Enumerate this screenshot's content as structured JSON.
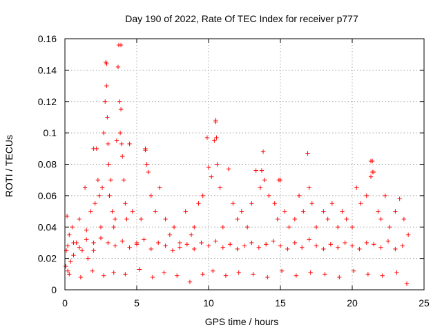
{
  "chart_data": {
    "type": "scatter",
    "title": "Day 190 of 2022, Rate Of TEC Index for receiver p777",
    "xlabel": "GPS time / hours",
    "ylabel": "ROTI / TECUs",
    "xlim": [
      0,
      25
    ],
    "ylim": [
      0,
      0.16
    ],
    "xticks": [
      0,
      5,
      10,
      15,
      20,
      25
    ],
    "xtick_labels": [
      "0",
      "5",
      "10",
      "15",
      "20",
      "25"
    ],
    "yticks": [
      0,
      0.02,
      0.04,
      0.06,
      0.08,
      0.1,
      0.12,
      0.14,
      0.16
    ],
    "ytick_labels": [
      "0",
      "0.02",
      "0.04",
      "0.06",
      "0.08",
      "0.1",
      "0.12",
      "0.14",
      "0.16"
    ],
    "grid": true,
    "marker": "+",
    "color": "#ff0000",
    "series": [
      {
        "name": "ROTI",
        "x": [
          0.05,
          0.1,
          0.15,
          0.2,
          0.3,
          0.4,
          0.5,
          0.6,
          0.8,
          1.0,
          1.2,
          1.4,
          1.5,
          1.6,
          1.8,
          2.0,
          2.1,
          2.2,
          2.3,
          2.4,
          2.5,
          2.6,
          2.7,
          2.8,
          2.85,
          2.9,
          2.95,
          3.0,
          3.05,
          3.1,
          3.2,
          3.3,
          3.4,
          3.5,
          3.6,
          3.7,
          3.75,
          3.8,
          3.85,
          3.9,
          3.95,
          4.0,
          4.1,
          4.2,
          4.3,
          4.5,
          4.7,
          5.0,
          5.3,
          5.6,
          5.7,
          5.8,
          6.0,
          6.3,
          6.6,
          7.0,
          7.3,
          7.6,
          8.0,
          8.4,
          8.8,
          9.0,
          9.3,
          9.6,
          10.0,
          10.2,
          10.4,
          10.5,
          10.55,
          10.6,
          10.8,
          11.0,
          11.4,
          11.7,
          12.0,
          12.3,
          12.7,
          13.0,
          13.3,
          13.6,
          13.8,
          13.9,
          14.2,
          14.6,
          14.8,
          15.0,
          15.3,
          15.6,
          16.0,
          16.3,
          16.6,
          16.9,
          17.0,
          17.2,
          17.5,
          18.0,
          18.3,
          18.6,
          19.0,
          19.3,
          19.6,
          20.0,
          20.3,
          20.6,
          21.0,
          21.3,
          21.4,
          21.5,
          21.8,
          22.0,
          22.3,
          22.6,
          23.0,
          23.3,
          23.6,
          23.9,
          0.2,
          0.6,
          1.0,
          1.5,
          2.0,
          2.5,
          3.0,
          3.5,
          4.0,
          4.5,
          5.0,
          5.5,
          6.0,
          6.5,
          7.0,
          7.5,
          8.0,
          8.5,
          9.0,
          9.5,
          10.0,
          10.5,
          11.0,
          11.5,
          12.0,
          12.5,
          13.0,
          13.5,
          14.0,
          14.5,
          15.0,
          15.5,
          16.0,
          16.5,
          17.0,
          17.5,
          18.0,
          18.5,
          19.0,
          19.5,
          20.0,
          20.5,
          21.0,
          21.5,
          22.0,
          22.5,
          23.0,
          23.5,
          0.3,
          1.1,
          1.9,
          2.7,
          3.4,
          4.2,
          5.2,
          6.1,
          6.9,
          7.8,
          8.7,
          9.6,
          10.3,
          11.2,
          12.1,
          13.1,
          14.1,
          15.1,
          16.1,
          17.1,
          18.1,
          19.1,
          20.1,
          21.1,
          22.1,
          23.1,
          23.8,
          2.0,
          2.9,
          3.9,
          5.6,
          9.9,
          10.5,
          13.7,
          14.9,
          16.9,
          21.3,
          21.4
        ],
        "y": [
          0.015,
          0.025,
          0.047,
          0.012,
          0.035,
          0.018,
          0.04,
          0.022,
          0.03,
          0.045,
          0.025,
          0.065,
          0.038,
          0.02,
          0.05,
          0.03,
          0.055,
          0.09,
          0.07,
          0.06,
          0.04,
          0.065,
          0.1,
          0.12,
          0.145,
          0.13,
          0.11,
          0.093,
          0.08,
          0.06,
          0.07,
          0.05,
          0.04,
          0.045,
          0.095,
          0.142,
          0.156,
          0.12,
          0.1,
          0.115,
          0.093,
          0.085,
          0.07,
          0.055,
          0.045,
          0.093,
          0.05,
          0.03,
          0.045,
          0.09,
          0.08,
          0.075,
          0.06,
          0.05,
          0.065,
          0.045,
          0.035,
          0.04,
          0.03,
          0.05,
          0.035,
          0.04,
          0.055,
          0.06,
          0.078,
          0.072,
          0.095,
          0.108,
          0.097,
          0.08,
          0.065,
          0.04,
          0.077,
          0.055,
          0.045,
          0.05,
          0.04,
          0.055,
          0.076,
          0.065,
          0.088,
          0.07,
          0.06,
          0.055,
          0.045,
          0.07,
          0.05,
          0.04,
          0.045,
          0.06,
          0.05,
          0.087,
          0.065,
          0.055,
          0.04,
          0.05,
          0.045,
          0.055,
          0.04,
          0.05,
          0.045,
          0.04,
          0.065,
          0.055,
          0.06,
          0.072,
          0.082,
          0.075,
          0.05,
          0.045,
          0.06,
          0.04,
          0.05,
          0.058,
          0.045,
          0.035,
          0.028,
          0.03,
          0.027,
          0.032,
          0.025,
          0.033,
          0.03,
          0.028,
          0.031,
          0.027,
          0.029,
          0.032,
          0.026,
          0.03,
          0.028,
          0.025,
          0.027,
          0.029,
          0.026,
          0.03,
          0.028,
          0.031,
          0.027,
          0.029,
          0.026,
          0.028,
          0.03,
          0.027,
          0.029,
          0.031,
          0.028,
          0.026,
          0.03,
          0.027,
          0.032,
          0.028,
          0.026,
          0.029,
          0.027,
          0.03,
          0.028,
          0.026,
          0.03,
          0.029,
          0.027,
          0.031,
          0.026,
          0.028,
          0.01,
          0.008,
          0.012,
          0.009,
          0.011,
          0.01,
          0.013,
          0.008,
          0.011,
          0.009,
          0.005,
          0.01,
          0.012,
          0.009,
          0.011,
          0.01,
          0.008,
          0.012,
          0.009,
          0.011,
          0.01,
          0.008,
          0.012,
          0.01,
          0.009,
          0.011,
          0.004,
          0.09,
          0.144,
          0.156,
          0.089,
          0.097,
          0.107,
          0.076,
          0.07,
          0.087,
          0.082,
          0.075
        ]
      }
    ]
  }
}
